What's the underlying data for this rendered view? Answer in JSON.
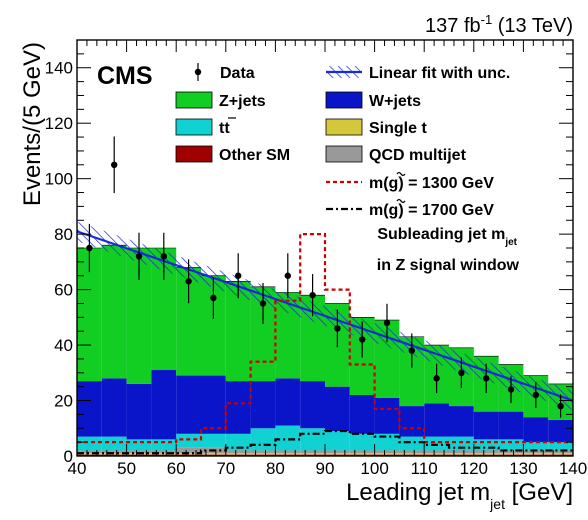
{
  "chart_data": {
    "type": "bar",
    "stacked_histogram": true,
    "lumi_label": "137 fb",
    "lumi_sup": "-1",
    "lumi_energy": "(13 TeV)",
    "cms_label": "CMS",
    "xlabel": "Leading jet m",
    "xlabel_sub": "jet",
    "xlabel_unit": "[GeV]",
    "ylabel": "Events/(5 GeV)",
    "xlim": [
      40,
      140
    ],
    "ylim": [
      0,
      150
    ],
    "x_ticks": [
      40,
      50,
      60,
      70,
      80,
      90,
      100,
      110,
      120,
      130,
      140
    ],
    "y_ticks": [
      0,
      20,
      40,
      60,
      80,
      100,
      120,
      140
    ],
    "annotation_line1": "Subleading jet m",
    "annotation_line1_sub": "jet",
    "annotation_line2": "in Z signal window",
    "bin_edges": [
      40,
      45,
      50,
      55,
      60,
      65,
      70,
      75,
      80,
      85,
      90,
      95,
      100,
      105,
      110,
      115,
      120,
      125,
      130,
      135,
      140
    ],
    "stack": [
      {
        "key": "other_sm",
        "name": "Other SM",
        "color": "#a00000",
        "values": [
          0.5,
          0.5,
          0.5,
          0.5,
          0.5,
          0.5,
          0.5,
          0.5,
          0.5,
          0.5,
          0.5,
          0.5,
          0.5,
          0.5,
          0.5,
          0.5,
          0.5,
          0.5,
          0.5,
          0.5
        ]
      },
      {
        "key": "single_t",
        "name": "Single t",
        "color": "#d4c83a",
        "values": [
          0.5,
          0.5,
          0.5,
          0.5,
          0.5,
          0.5,
          0.5,
          0.5,
          0.5,
          0.5,
          0.5,
          0.5,
          0.5,
          0.5,
          0.5,
          0.5,
          0.5,
          0.5,
          0.5,
          0.5
        ]
      },
      {
        "key": "qcd",
        "name": "QCD multijet",
        "color": "#999999",
        "values": [
          1,
          1,
          1,
          1,
          2,
          2,
          1,
          1,
          1,
          1,
          1,
          1,
          1,
          1,
          1,
          1,
          1,
          1,
          1,
          1
        ]
      },
      {
        "key": "tt",
        "name": "tt",
        "color": "#10d2d2",
        "values": [
          5,
          5,
          4,
          4,
          5,
          5,
          6,
          8,
          9,
          8,
          7,
          6,
          6,
          5,
          5,
          5,
          4,
          4,
          3,
          3
        ]
      },
      {
        "key": "wjets",
        "name": "W+jets",
        "color": "#0a14c8",
        "values": [
          20,
          21,
          20,
          25,
          21,
          21,
          19,
          17,
          17,
          17,
          16,
          14,
          13,
          11,
          12,
          11,
          10,
          10,
          9,
          8
        ]
      },
      {
        "key": "zjets",
        "name": "Z+jets",
        "color": "#12cd22",
        "values": [
          48,
          48,
          49,
          44,
          39,
          36,
          36,
          34,
          31,
          31,
          30,
          28,
          28,
          25,
          21,
          21,
          20,
          17,
          15,
          13
        ]
      }
    ],
    "signal": [
      {
        "key": "sig1300",
        "name": "m(g) = 1300 GeV",
        "color": "#cc0000",
        "dash": "4,3",
        "values": [
          5,
          5,
          5,
          5,
          6,
          10,
          19,
          34,
          56,
          80,
          60,
          33,
          17,
          10,
          5,
          5,
          5,
          5,
          5,
          5
        ]
      },
      {
        "key": "sig1700",
        "name": "m(g) = 1700 GeV",
        "color": "#000000",
        "dash": "7,3,2,3",
        "values": [
          1,
          1,
          1,
          1,
          1,
          2,
          3,
          4,
          6,
          8,
          9,
          8,
          7,
          5,
          4,
          3,
          3,
          2,
          2,
          2
        ]
      }
    ],
    "data_points": {
      "name": "Data",
      "x": [
        42.5,
        47.5,
        52.5,
        57.5,
        62.5,
        67.5,
        72.5,
        77.5,
        82.5,
        87.5,
        92.5,
        97.5,
        102.5,
        107.5,
        112.5,
        117.5,
        122.5,
        127.5,
        132.5,
        137.5
      ],
      "y": [
        75,
        105,
        72,
        72,
        63,
        57,
        65,
        55,
        65,
        58,
        46,
        42,
        48,
        38,
        28,
        30,
        28,
        24,
        22,
        18
      ],
      "err": [
        8.7,
        10.2,
        8.5,
        8.5,
        7.9,
        7.5,
        8.1,
        7.4,
        8.1,
        7.6,
        6.8,
        6.5,
        6.9,
        6.2,
        5.3,
        5.5,
        5.3,
        4.9,
        4.7,
        4.2
      ]
    },
    "fit": {
      "name": "Linear fit with unc.",
      "color": "#1a2ad8",
      "x0": 40,
      "y0": 81,
      "x1": 140,
      "y1": 20,
      "band": 3.5
    },
    "legend": [
      {
        "label": "Data",
        "type": "point",
        "color": "#000000"
      },
      {
        "label": "Linear fit with unc.",
        "type": "fit",
        "color": "#1a2ad8"
      },
      {
        "label": "Z+jets",
        "type": "box",
        "color": "#12cd22"
      },
      {
        "label": "W+jets",
        "type": "box",
        "color": "#0a14c8"
      },
      {
        "label": "tt",
        "type": "box",
        "color": "#10d2d2",
        "overline": true
      },
      {
        "label": "Single t",
        "type": "box",
        "color": "#d4c83a"
      },
      {
        "label": "Other SM",
        "type": "box",
        "color": "#a00000"
      },
      {
        "label": "QCD multijet",
        "type": "box",
        "color": "#999999"
      },
      {
        "label": "m(g) = 1300 GeV",
        "type": "line",
        "color": "#cc0000",
        "dash": "4,3",
        "tilde": true
      },
      {
        "label": "m(g) = 1700 GeV",
        "type": "line",
        "color": "#000000",
        "dash": "7,3,2,3",
        "tilde": true
      }
    ]
  }
}
